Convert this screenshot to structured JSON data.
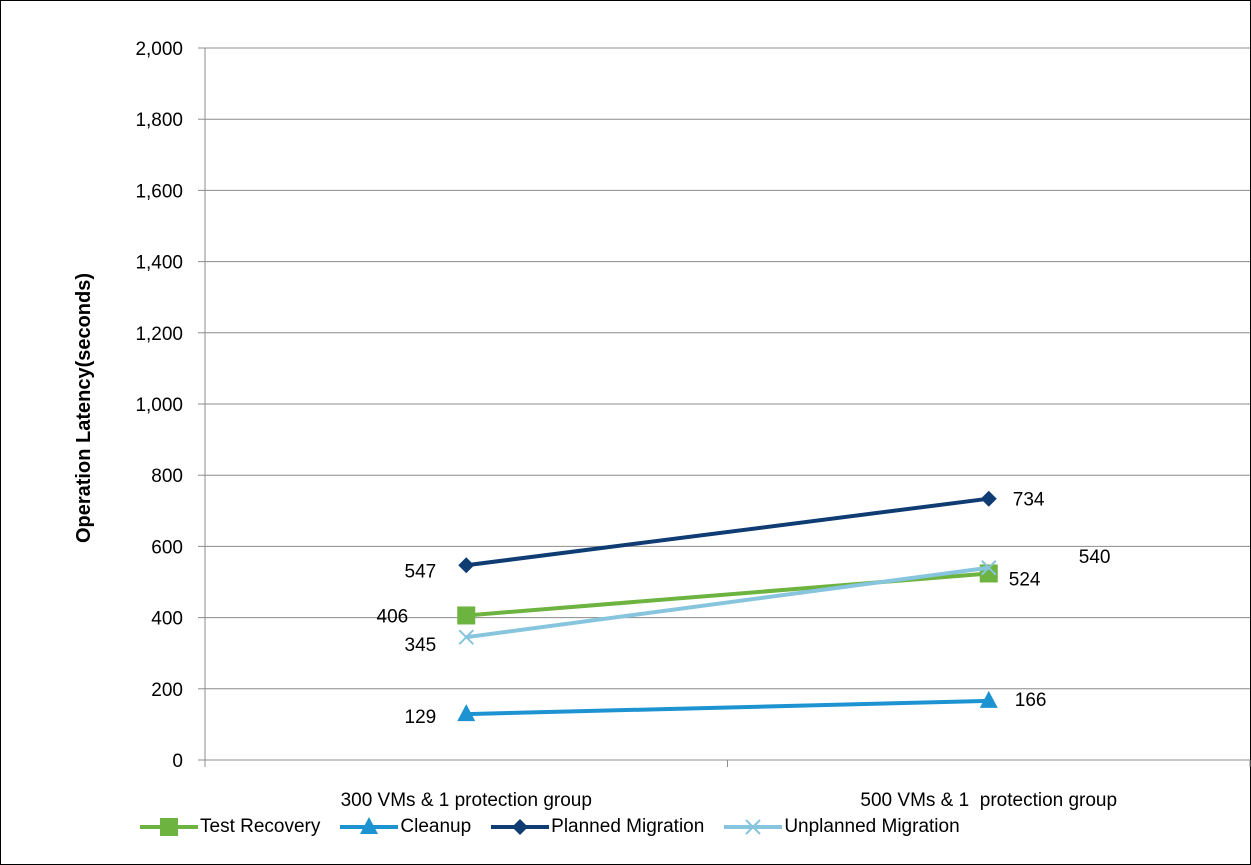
{
  "chart_data": {
    "type": "line",
    "ylabel": "Operation Latency(seconds)",
    "xlabel": "",
    "ylim": [
      0,
      2000
    ],
    "yticks": [
      "0",
      "200",
      "400",
      "600",
      "800",
      "1,000",
      "1,200",
      "1,400",
      "1,600",
      "1,800",
      "2,000"
    ],
    "categories": [
      "300 VMs & 1 protection group",
      "500 VMs & 1  protection group"
    ],
    "grid": "horizontal",
    "legend_position": "bottom",
    "series": [
      {
        "name": "Test Recovery",
        "values": [
          406,
          524
        ],
        "labels": [
          "406",
          "524"
        ],
        "color": "#6db33f",
        "marker": "square"
      },
      {
        "name": "Cleanup",
        "values": [
          129,
          166
        ],
        "labels": [
          "129",
          "166"
        ],
        "color": "#1d93d2",
        "marker": "triangle"
      },
      {
        "name": "Planned Migration",
        "values": [
          547,
          734
        ],
        "labels": [
          "547",
          "734"
        ],
        "color": "#0e3c73",
        "marker": "diamond"
      },
      {
        "name": "Unplanned Migration",
        "values": [
          345,
          540
        ],
        "labels": [
          "345",
          "540"
        ],
        "color": "#86c5dd",
        "marker": "x"
      }
    ]
  }
}
